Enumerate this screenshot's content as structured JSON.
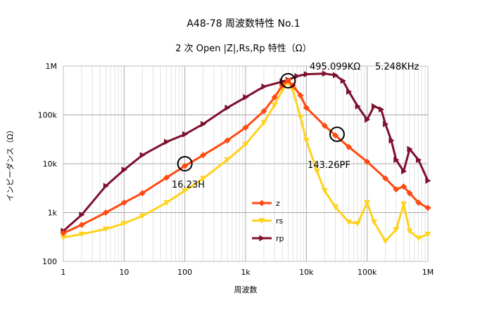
{
  "chart_data": {
    "type": "line",
    "title": "A48-78  周波数特性     No.1",
    "subtitle": "2 次 Open     |Z|,Rs,Rp 特性（Ω）",
    "xlabel": "周波数",
    "ylabel": "インピーダンス（Ω）",
    "x_scale": "log",
    "y_scale": "log",
    "xlim": [
      1,
      1000000
    ],
    "ylim": [
      100,
      1000000
    ],
    "x_ticks": [
      {
        "value": 1,
        "label": "1"
      },
      {
        "value": 10,
        "label": "10"
      },
      {
        "value": 100,
        "label": "100"
      },
      {
        "value": 1000,
        "label": "1k"
      },
      {
        "value": 10000,
        "label": "10k"
      },
      {
        "value": 100000,
        "label": "100k"
      },
      {
        "value": 1000000,
        "label": "1M"
      }
    ],
    "y_ticks": [
      {
        "value": 100,
        "label": "100"
      },
      {
        "value": 1000,
        "label": "1k"
      },
      {
        "value": 10000,
        "label": "10k"
      },
      {
        "value": 100000,
        "label": "100k"
      },
      {
        "value": 1000000,
        "label": "1M"
      }
    ],
    "grid": true,
    "legend_position": "center-bottom",
    "series": [
      {
        "name": "z",
        "color": "#ff4a12",
        "marker": "diamond",
        "x": [
          1,
          2,
          5,
          10,
          20,
          50,
          100,
          200,
          500,
          1000,
          2000,
          3000,
          4000,
          5000,
          6000,
          8000,
          10000,
          20000,
          30000,
          50000,
          100000,
          200000,
          300000,
          400000,
          500000,
          700000,
          1000000
        ],
        "y": [
          380,
          560,
          1000,
          1600,
          2500,
          5200,
          9000,
          15000,
          30000,
          55000,
          120000,
          230000,
          400000,
          500000,
          400000,
          250000,
          140000,
          60000,
          38000,
          22000,
          11000,
          5000,
          3000,
          3400,
          2500,
          1600,
          1250
        ]
      },
      {
        "name": "rs",
        "color": "#ffd21e",
        "marker": "triangle-down",
        "x": [
          1,
          2,
          5,
          10,
          20,
          50,
          100,
          200,
          500,
          1000,
          2000,
          3000,
          4000,
          5000,
          6000,
          8000,
          10000,
          15000,
          20000,
          30000,
          50000,
          70000,
          100000,
          130000,
          200000,
          300000,
          400000,
          500000,
          700000,
          1000000
        ],
        "y": [
          310,
          360,
          460,
          600,
          850,
          1600,
          2800,
          5000,
          12000,
          25000,
          70000,
          160000,
          320000,
          480000,
          320000,
          90000,
          30000,
          7000,
          2800,
          1300,
          640,
          600,
          1600,
          640,
          260,
          450,
          1500,
          420,
          300,
          360
        ]
      },
      {
        "name": "rp",
        "color": "#7f0f2e",
        "marker": "triangle-right",
        "x": [
          1,
          2,
          5,
          10,
          20,
          50,
          100,
          200,
          500,
          1000,
          2000,
          4000,
          5000,
          7000,
          10000,
          20000,
          30000,
          40000,
          50000,
          70000,
          100000,
          130000,
          170000,
          200000,
          250000,
          300000,
          400000,
          500000,
          700000,
          1000000
        ],
        "y": [
          420,
          900,
          3500,
          7500,
          15000,
          28000,
          40000,
          65000,
          140000,
          230000,
          380000,
          480000,
          520000,
          620000,
          680000,
          700000,
          650000,
          500000,
          300000,
          150000,
          80000,
          150000,
          130000,
          65000,
          30000,
          12000,
          7000,
          20000,
          12000,
          4500
        ]
      }
    ],
    "annotations": [
      {
        "text": "495.099KΩ",
        "x": 5000,
        "y": 500000
      },
      {
        "text": "5.248KHz",
        "x": 5000,
        "y": 500000
      },
      {
        "text": "16.23H",
        "x": 100,
        "y": 10000
      },
      {
        "text": "143.26PF",
        "x": 30000,
        "y": 40000
      }
    ],
    "circle_markers": [
      {
        "x": 100,
        "y": 10000
      },
      {
        "x": 5000,
        "y": 500000
      },
      {
        "x": 32000,
        "y": 40000
      }
    ]
  }
}
